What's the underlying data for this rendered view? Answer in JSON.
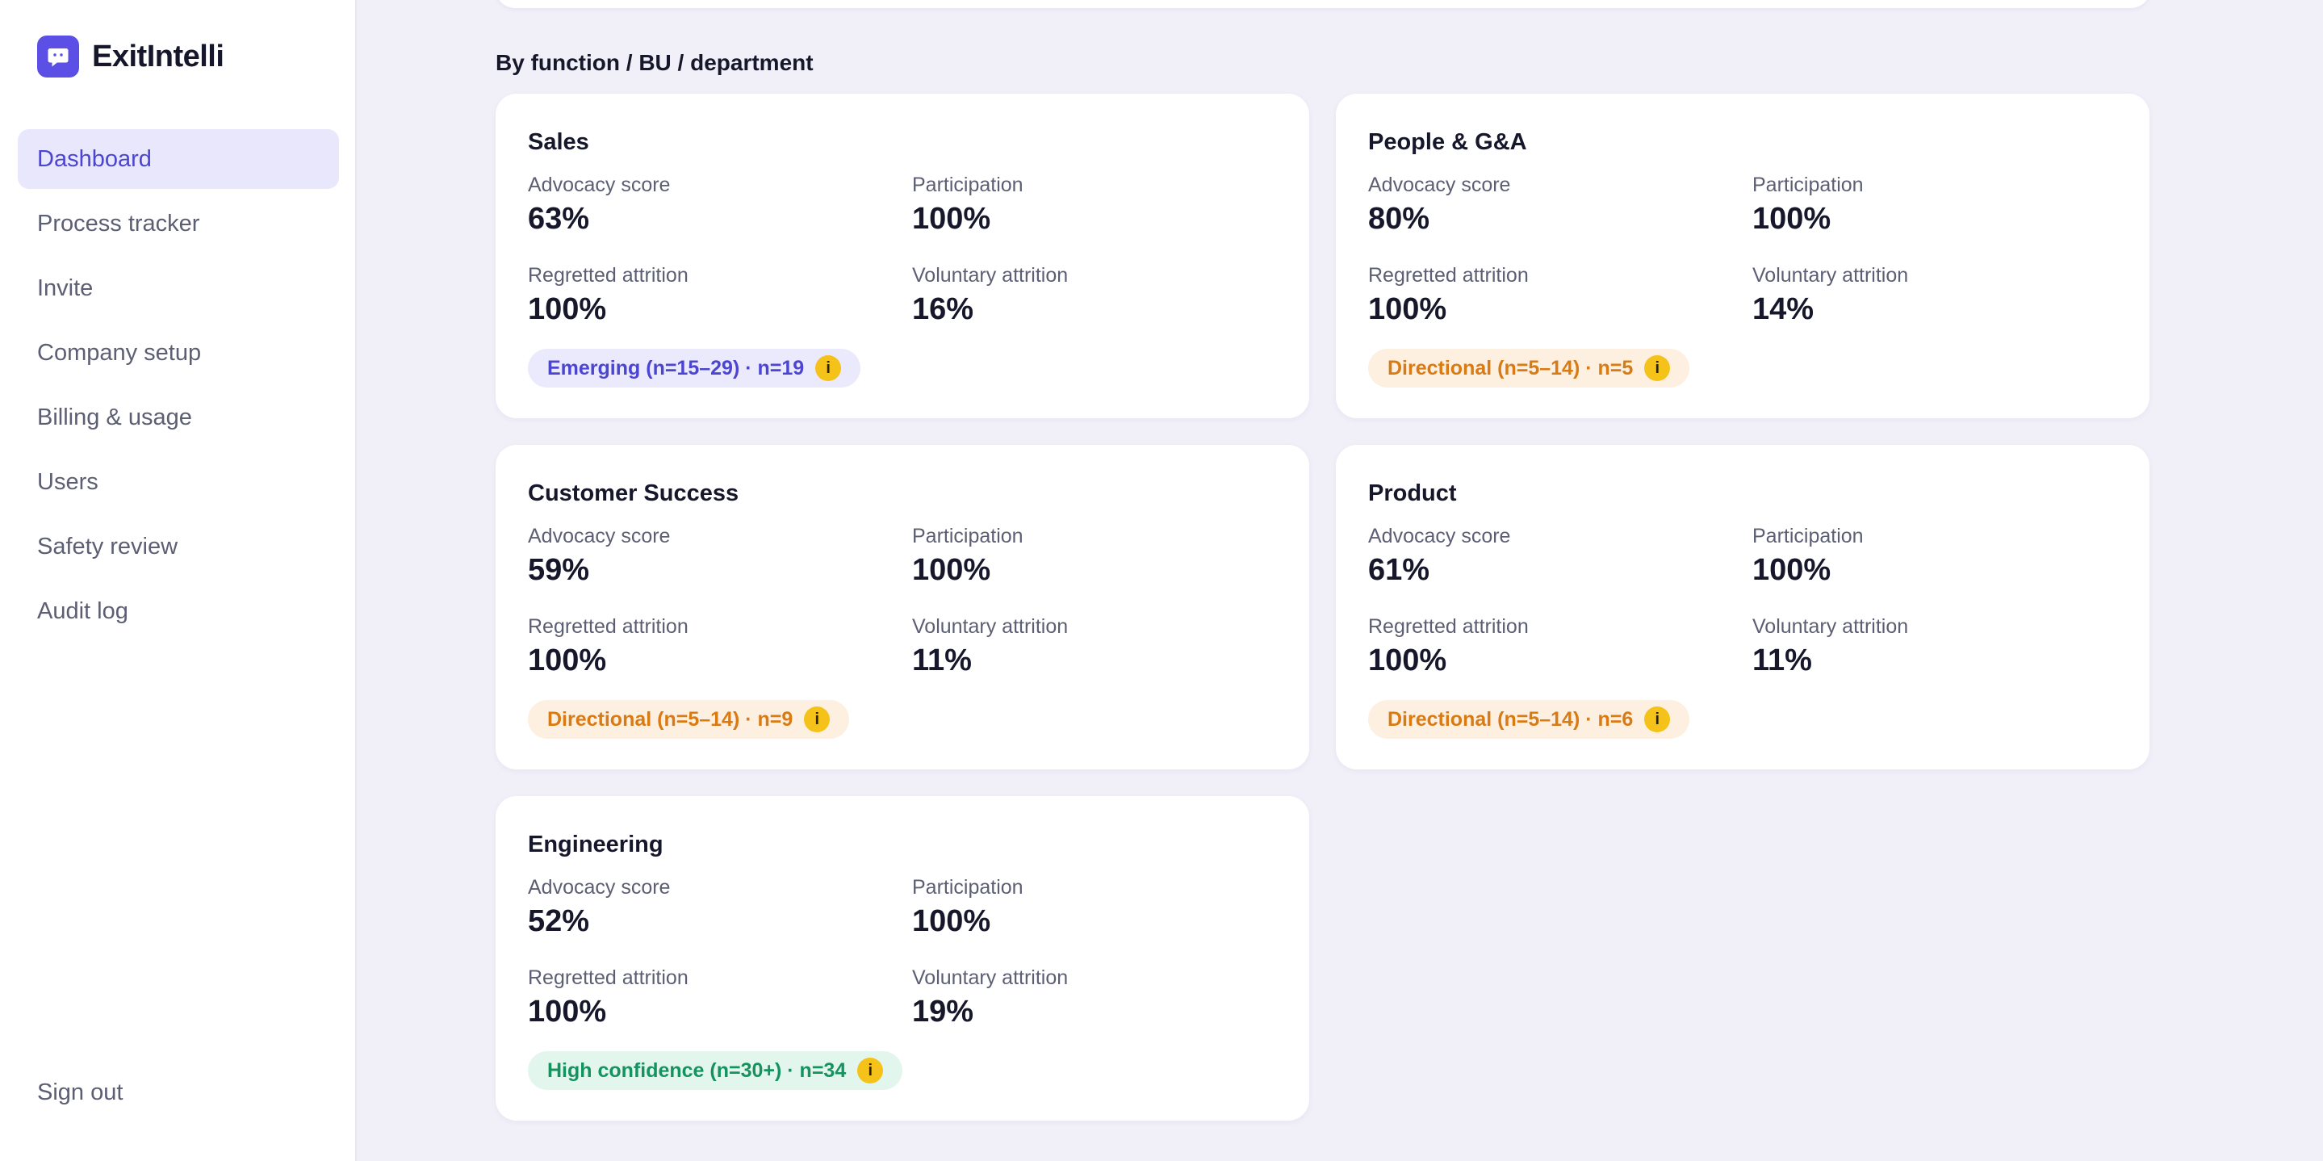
{
  "app": {
    "name": "ExitIntelli",
    "brand_color": "#5b4fe6"
  },
  "sidebar": {
    "items": [
      {
        "label": "Dashboard",
        "active": true
      },
      {
        "label": "Process tracker"
      },
      {
        "label": "Invite"
      },
      {
        "label": "Company setup"
      },
      {
        "label": "Billing & usage"
      },
      {
        "label": "Users"
      },
      {
        "label": "Safety review"
      },
      {
        "label": "Audit log"
      }
    ],
    "sign_out": "Sign out"
  },
  "section": {
    "title": "By function / BU / department"
  },
  "metric_labels": {
    "advocacy": "Advocacy score",
    "participation": "Participation",
    "regretted": "Regretted attrition",
    "voluntary": "Voluntary attrition"
  },
  "cards": [
    {
      "title": "Sales",
      "advocacy": "63%",
      "participation": "100%",
      "regretted": "100%",
      "voluntary": "16%",
      "badge": "Emerging (n=15–29) · n=19",
      "badge_type": "emerging"
    },
    {
      "title": "People & G&A",
      "advocacy": "80%",
      "participation": "100%",
      "regretted": "100%",
      "voluntary": "14%",
      "badge": "Directional (n=5–14) · n=5",
      "badge_type": "directional"
    },
    {
      "title": "Customer Success",
      "advocacy": "59%",
      "participation": "100%",
      "regretted": "100%",
      "voluntary": "11%",
      "badge": "Directional (n=5–14) · n=9",
      "badge_type": "directional"
    },
    {
      "title": "Product",
      "advocacy": "61%",
      "participation": "100%",
      "regretted": "100%",
      "voluntary": "11%",
      "badge": "Directional (n=5–14) · n=6",
      "badge_type": "directional"
    },
    {
      "title": "Engineering",
      "advocacy": "52%",
      "participation": "100%",
      "regretted": "100%",
      "voluntary": "19%",
      "badge": "High confidence (n=30+) · n=34",
      "badge_type": "high"
    }
  ],
  "icons": {
    "info": "i"
  }
}
